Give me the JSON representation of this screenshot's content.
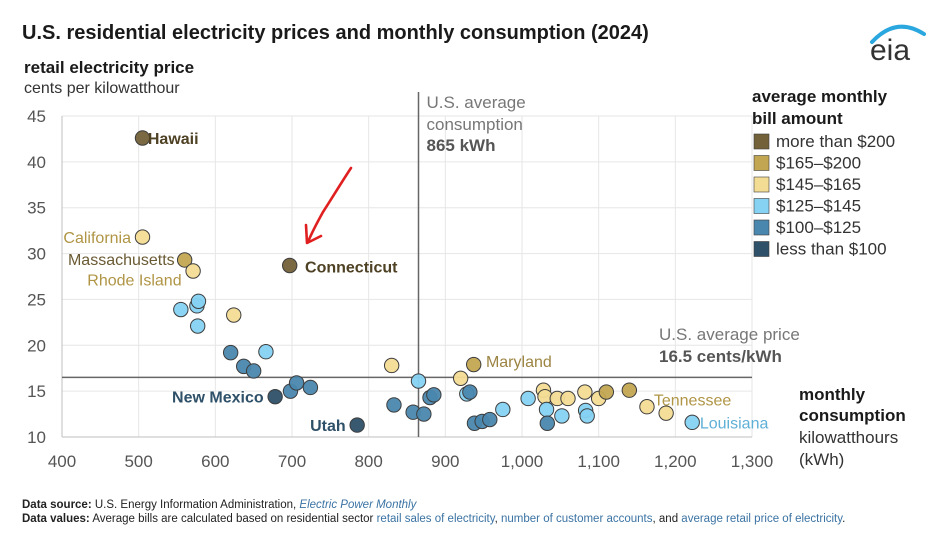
{
  "chart_data": {
    "type": "scatter",
    "title": "U.S. residential electricity prices and monthly consumption (2024)",
    "ylabel": "retail electricity price",
    "yunit": "cents per kilowatthour",
    "xlabel_line1": "monthly",
    "xlabel_line2": "consumption",
    "xunit_line1": "kilowatthours",
    "xunit_line2": "(kWh)",
    "xlim": [
      400,
      1300
    ],
    "ylim": [
      10,
      45
    ],
    "x_ticks": [
      400,
      500,
      600,
      700,
      800,
      900,
      1000,
      1100,
      1200,
      1300
    ],
    "x_tick_labels": [
      "400",
      "500",
      "600",
      "700",
      "800",
      "900",
      "1,000",
      "1,100",
      "1,200",
      "1,300"
    ],
    "y_ticks": [
      10,
      15,
      20,
      25,
      30,
      35,
      40,
      45
    ],
    "y_tick_labels": [
      "10",
      "15",
      "20",
      "25",
      "30",
      "35",
      "40",
      "45"
    ],
    "grid": true,
    "avg_consumption": {
      "value": 865,
      "line1": "U.S. average",
      "line2": "consumption",
      "line3": "865 kWh"
    },
    "avg_price": {
      "value": 16.5,
      "line1": "U.S. average price",
      "line2": "16.5 cents/kWh"
    },
    "legend": {
      "title_line1": "average monthly",
      "title_line2": "bill amount",
      "entries": [
        {
          "key": "gt200",
          "label": "more than $200",
          "color": "#736139"
        },
        {
          "key": "165_200",
          "label": "$165–$200",
          "color": "#c3a652"
        },
        {
          "key": "145_165",
          "label": "$145–$165",
          "color": "#f3dc94"
        },
        {
          "key": "125_145",
          "label": "$125–$145",
          "color": "#86d2f3"
        },
        {
          "key": "100_125",
          "label": "$100–$125",
          "color": "#4a87ae"
        },
        {
          "key": "lt100",
          "label": "less than $100",
          "color": "#2e5068"
        }
      ]
    },
    "labels": [
      {
        "text": "Hawaii",
        "x": 512,
        "y": 42.6,
        "anchor": "start",
        "color": "#4e4124",
        "bold": true
      },
      {
        "text": "California",
        "x": 490,
        "y": 31.8,
        "anchor": "end",
        "color": "#b09545",
        "bold": false
      },
      {
        "text": "Massachusetts",
        "x": 547,
        "y": 29.4,
        "anchor": "end",
        "color": "#6a5a33",
        "bold": false
      },
      {
        "text": "Rhode Island",
        "x": 556,
        "y": 27.2,
        "anchor": "end",
        "color": "#b09545",
        "bold": false
      },
      {
        "text": "Connecticut",
        "x": 717,
        "y": 28.6,
        "anchor": "start",
        "color": "#4e4124",
        "bold": true
      },
      {
        "text": "Maryland",
        "x": 953,
        "y": 18.3,
        "anchor": "start",
        "color": "#9c8442",
        "bold": false
      },
      {
        "text": "New Mexico",
        "x": 663,
        "y": 14.4,
        "anchor": "end",
        "color": "#2e5068",
        "bold": true
      },
      {
        "text": "Utah",
        "x": 770,
        "y": 11.3,
        "anchor": "end",
        "color": "#2e5068",
        "bold": true
      },
      {
        "text": "Tennessee",
        "x": 1172,
        "y": 14.1,
        "anchor": "start",
        "color": "#b09545",
        "bold": false
      },
      {
        "text": "Louisiana",
        "x": 1232,
        "y": 11.6,
        "anchor": "start",
        "color": "#5fb0d6",
        "bold": false
      }
    ],
    "points": [
      {
        "x": 505,
        "y": 42.6,
        "cat": "gt200"
      },
      {
        "x": 505,
        "y": 31.8,
        "cat": "145_165"
      },
      {
        "x": 560,
        "y": 29.3,
        "cat": "165_200"
      },
      {
        "x": 571,
        "y": 28.1,
        "cat": "145_165"
      },
      {
        "x": 697,
        "y": 28.7,
        "cat": "gt200"
      },
      {
        "x": 555,
        "y": 23.9,
        "cat": "125_145"
      },
      {
        "x": 576,
        "y": 24.3,
        "cat": "125_145"
      },
      {
        "x": 578,
        "y": 24.8,
        "cat": "125_145"
      },
      {
        "x": 577,
        "y": 22.1,
        "cat": "125_145"
      },
      {
        "x": 624,
        "y": 23.3,
        "cat": "145_165"
      },
      {
        "x": 620,
        "y": 19.2,
        "cat": "100_125"
      },
      {
        "x": 666,
        "y": 19.3,
        "cat": "125_145"
      },
      {
        "x": 637,
        "y": 17.7,
        "cat": "100_125"
      },
      {
        "x": 650,
        "y": 17.2,
        "cat": "100_125"
      },
      {
        "x": 678,
        "y": 14.4,
        "cat": "lt100"
      },
      {
        "x": 698,
        "y": 15.0,
        "cat": "100_125"
      },
      {
        "x": 706,
        "y": 15.9,
        "cat": "100_125"
      },
      {
        "x": 724,
        "y": 15.4,
        "cat": "100_125"
      },
      {
        "x": 785,
        "y": 11.3,
        "cat": "lt100"
      },
      {
        "x": 830,
        "y": 17.8,
        "cat": "145_165"
      },
      {
        "x": 833,
        "y": 13.5,
        "cat": "100_125"
      },
      {
        "x": 858,
        "y": 12.7,
        "cat": "100_125"
      },
      {
        "x": 865,
        "y": 16.1,
        "cat": "125_145"
      },
      {
        "x": 872,
        "y": 12.5,
        "cat": "100_125"
      },
      {
        "x": 880,
        "y": 14.3,
        "cat": "100_125"
      },
      {
        "x": 885,
        "y": 14.6,
        "cat": "100_125"
      },
      {
        "x": 920,
        "y": 16.4,
        "cat": "145_165"
      },
      {
        "x": 928,
        "y": 14.7,
        "cat": "125_145"
      },
      {
        "x": 932,
        "y": 14.9,
        "cat": "100_125"
      },
      {
        "x": 937,
        "y": 17.9,
        "cat": "165_200"
      },
      {
        "x": 938,
        "y": 11.5,
        "cat": "100_125"
      },
      {
        "x": 948,
        "y": 11.7,
        "cat": "100_125"
      },
      {
        "x": 958,
        "y": 11.9,
        "cat": "100_125"
      },
      {
        "x": 975,
        "y": 13.0,
        "cat": "125_145"
      },
      {
        "x": 1008,
        "y": 14.2,
        "cat": "125_145"
      },
      {
        "x": 1028,
        "y": 15.1,
        "cat": "145_165"
      },
      {
        "x": 1030,
        "y": 14.4,
        "cat": "145_165"
      },
      {
        "x": 1032,
        "y": 13.0,
        "cat": "125_145"
      },
      {
        "x": 1033,
        "y": 11.5,
        "cat": "100_125"
      },
      {
        "x": 1046,
        "y": 14.2,
        "cat": "145_165"
      },
      {
        "x": 1052,
        "y": 12.3,
        "cat": "125_145"
      },
      {
        "x": 1060,
        "y": 14.2,
        "cat": "145_165"
      },
      {
        "x": 1082,
        "y": 14.9,
        "cat": "145_165"
      },
      {
        "x": 1083,
        "y": 12.9,
        "cat": "125_145"
      },
      {
        "x": 1085,
        "y": 12.3,
        "cat": "125_145"
      },
      {
        "x": 1100,
        "y": 14.2,
        "cat": "145_165"
      },
      {
        "x": 1110,
        "y": 14.9,
        "cat": "165_200"
      },
      {
        "x": 1140,
        "y": 15.1,
        "cat": "165_200"
      },
      {
        "x": 1163,
        "y": 13.3,
        "cat": "145_165"
      },
      {
        "x": 1188,
        "y": 12.6,
        "cat": "145_165"
      },
      {
        "x": 1222,
        "y": 11.6,
        "cat": "125_145"
      }
    ]
  },
  "annotation": {
    "arrow_color": "#e02020"
  },
  "logo": {
    "text": "eia",
    "colors": {
      "swoosh": "#2aa7df",
      "text": "#333333"
    }
  },
  "footer": {
    "source_label": "Data source:",
    "source_text": " U.S. Energy Information Administration, ",
    "source_link": "Electric Power Monthly",
    "values_label": "Data values:",
    "values_text1": " Average bills are calculated based on residential sector ",
    "values_link1": "retail sales of electricity",
    "values_sep1": ", ",
    "values_link2": "number of customer accounts",
    "values_text2": ", and ",
    "values_link3": "average retail price of electricity",
    "values_end": "."
  }
}
